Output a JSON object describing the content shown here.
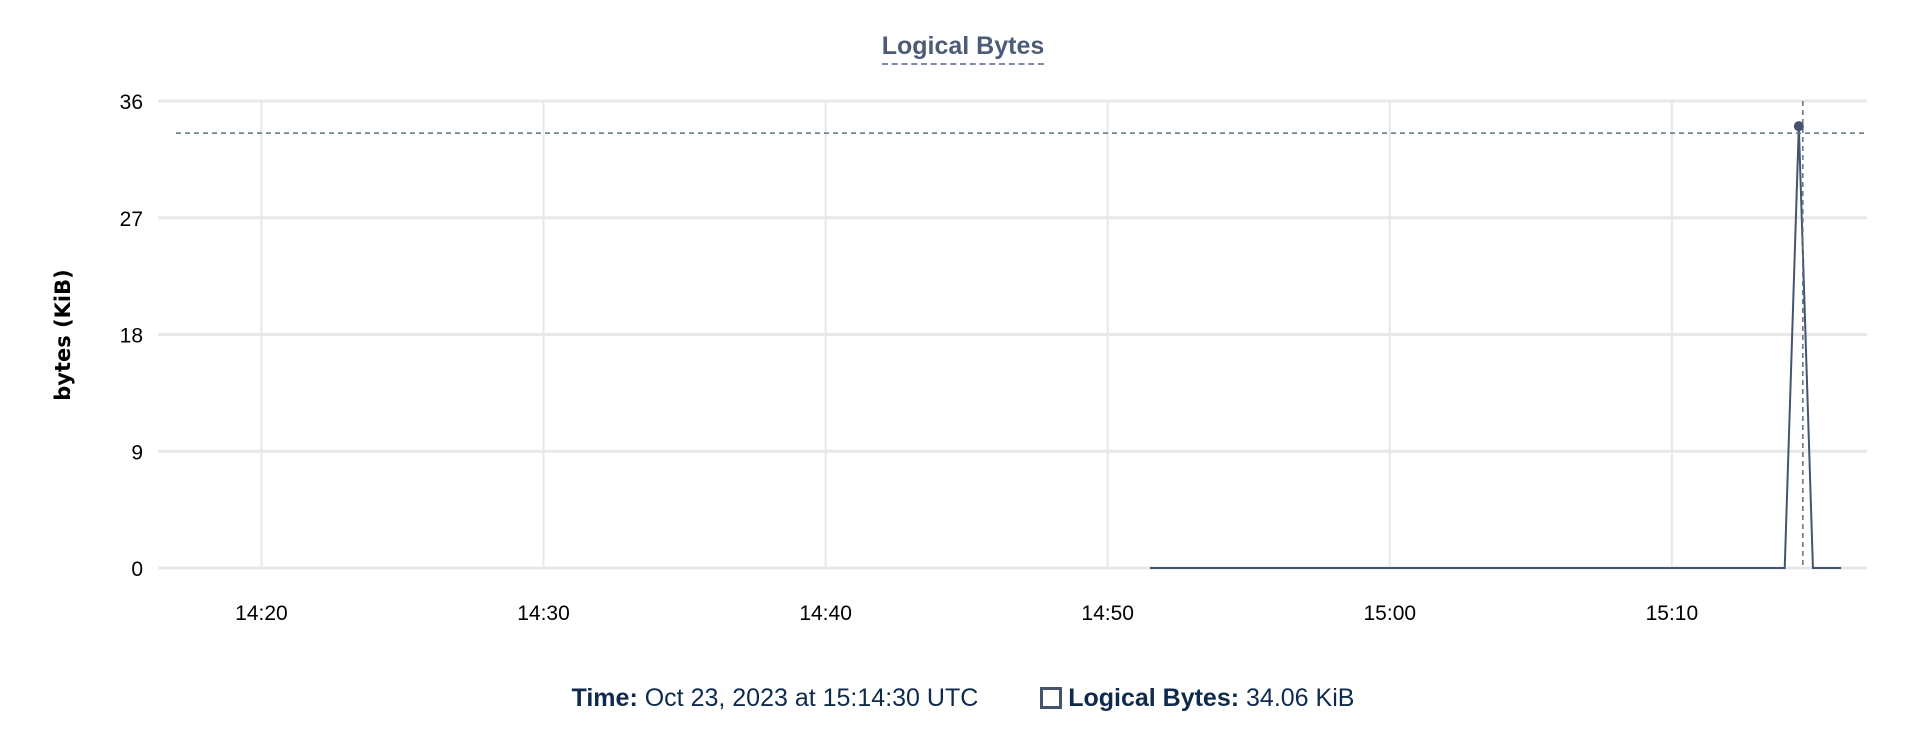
{
  "chart_data": {
    "type": "line",
    "title": "Logical Bytes",
    "xlabel": "",
    "ylabel": "bytes (KiB)",
    "ylim": [
      0,
      36
    ],
    "xlim": [
      "14:16:20",
      "15:16:55"
    ],
    "yticks": [
      "0",
      "9",
      "18",
      "27",
      "36"
    ],
    "xticks": [
      "14:20",
      "14:30",
      "14:40",
      "14:50",
      "15:00",
      "15:10"
    ],
    "grid": true,
    "series": [
      {
        "name": "Logical Bytes",
        "color": "#44546f",
        "x": [
          "14:51:30",
          "14:52:00",
          "14:52:30",
          "14:53:00",
          "14:53:30",
          "14:54:00",
          "14:54:30",
          "14:55:00",
          "14:55:30",
          "14:56:00",
          "14:56:30",
          "14:57:00",
          "14:57:30",
          "14:58:00",
          "14:58:30",
          "14:59:00",
          "14:59:30",
          "15:00:00",
          "15:00:30",
          "15:01:00",
          "15:01:30",
          "15:02:00",
          "15:02:30",
          "15:03:00",
          "15:03:30",
          "15:04:00",
          "15:04:30",
          "15:05:00",
          "15:05:30",
          "15:06:00",
          "15:06:30",
          "15:07:00",
          "15:07:30",
          "15:08:00",
          "15:08:30",
          "15:09:00",
          "15:09:30",
          "15:10:00",
          "15:10:30",
          "15:11:00",
          "15:11:30",
          "15:12:00",
          "15:12:30",
          "15:13:00",
          "15:13:30",
          "15:14:00",
          "15:14:30",
          "15:15:00",
          "15:15:30",
          "15:16:00"
        ],
        "values": [
          0,
          0,
          0,
          0,
          0,
          0,
          0,
          0,
          0,
          0,
          0,
          0,
          0,
          0,
          0,
          0,
          0,
          0,
          0,
          0,
          0,
          0,
          0,
          0,
          0,
          0,
          0,
          0,
          0,
          0,
          0,
          0,
          0,
          0,
          0,
          0,
          0,
          0,
          0,
          0,
          0,
          0,
          0,
          0,
          0,
          0,
          34.06,
          0,
          0,
          0
        ]
      }
    ],
    "hover": {
      "time": "15:14:30",
      "value": 34.06
    }
  },
  "tooltip": {
    "time_label": "Time:",
    "time_value": "Oct 23, 2023 at 15:14:30 UTC",
    "series_label": "Logical Bytes:",
    "series_value": "34.06 KiB"
  }
}
